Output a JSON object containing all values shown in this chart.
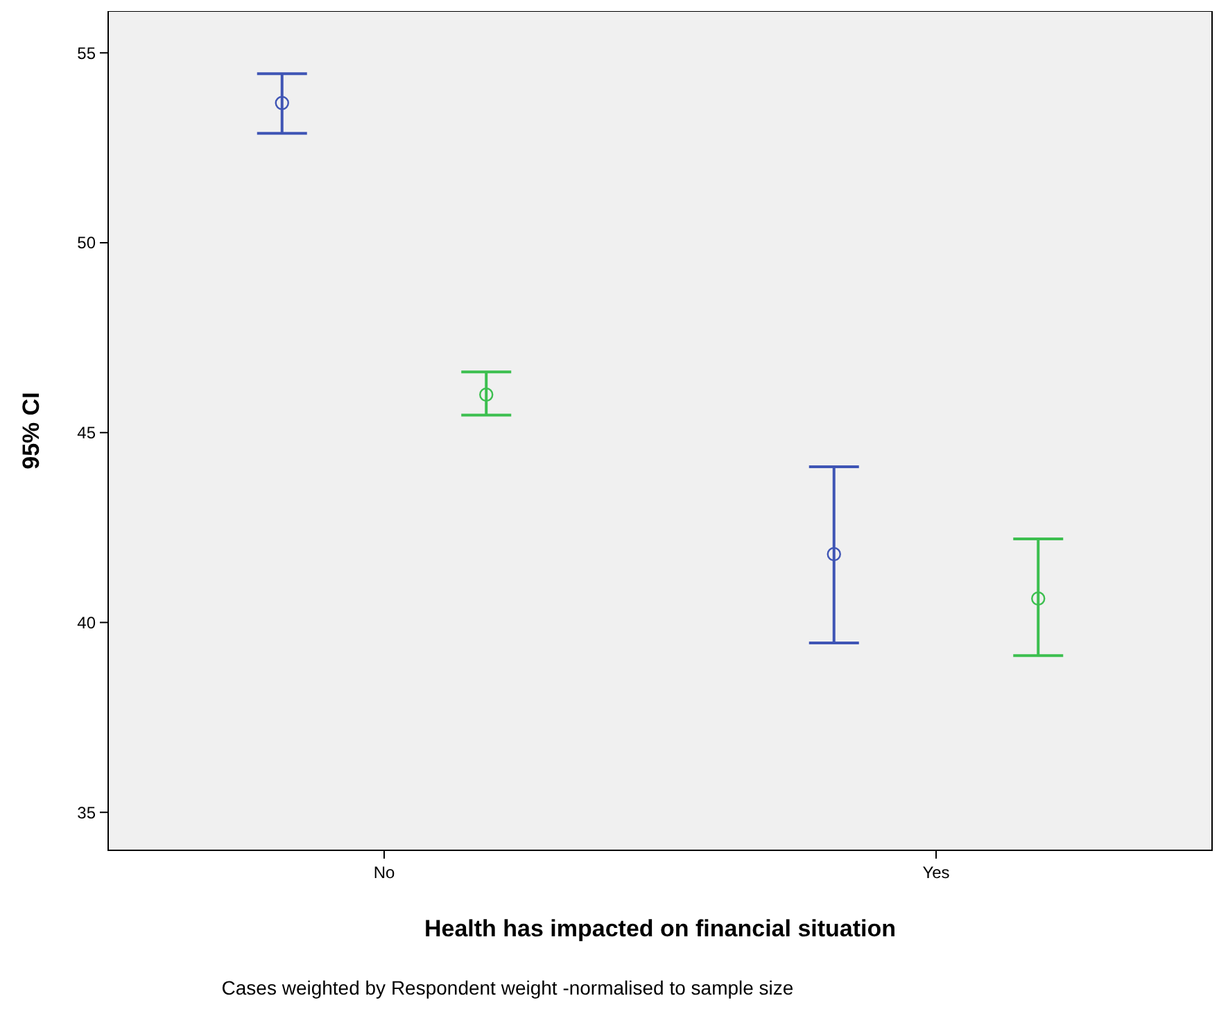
{
  "chart_data": {
    "type": "scatter",
    "xlabel": "Health has impacted on financial situation",
    "ylabel": "95% CI",
    "categories": [
      "No",
      "Yes"
    ],
    "series": [
      {
        "color": "#3f55b5",
        "values": [
          53.68,
          41.8
        ],
        "errors": [
          [
            52.88,
            54.45
          ],
          [
            39.46,
            44.1
          ]
        ]
      },
      {
        "color": "#3cbf4f",
        "values": [
          46.0,
          40.63
        ],
        "errors": [
          [
            45.46,
            46.6
          ],
          [
            39.13,
            42.2
          ]
        ]
      }
    ],
    "ylim": [
      34,
      56.1
    ],
    "yticks": [
      35,
      40,
      45,
      50,
      55
    ],
    "grid": false,
    "marker": "circle",
    "annotations": [
      "Cases weighted by Respondent weight -normalised to sample size"
    ]
  }
}
